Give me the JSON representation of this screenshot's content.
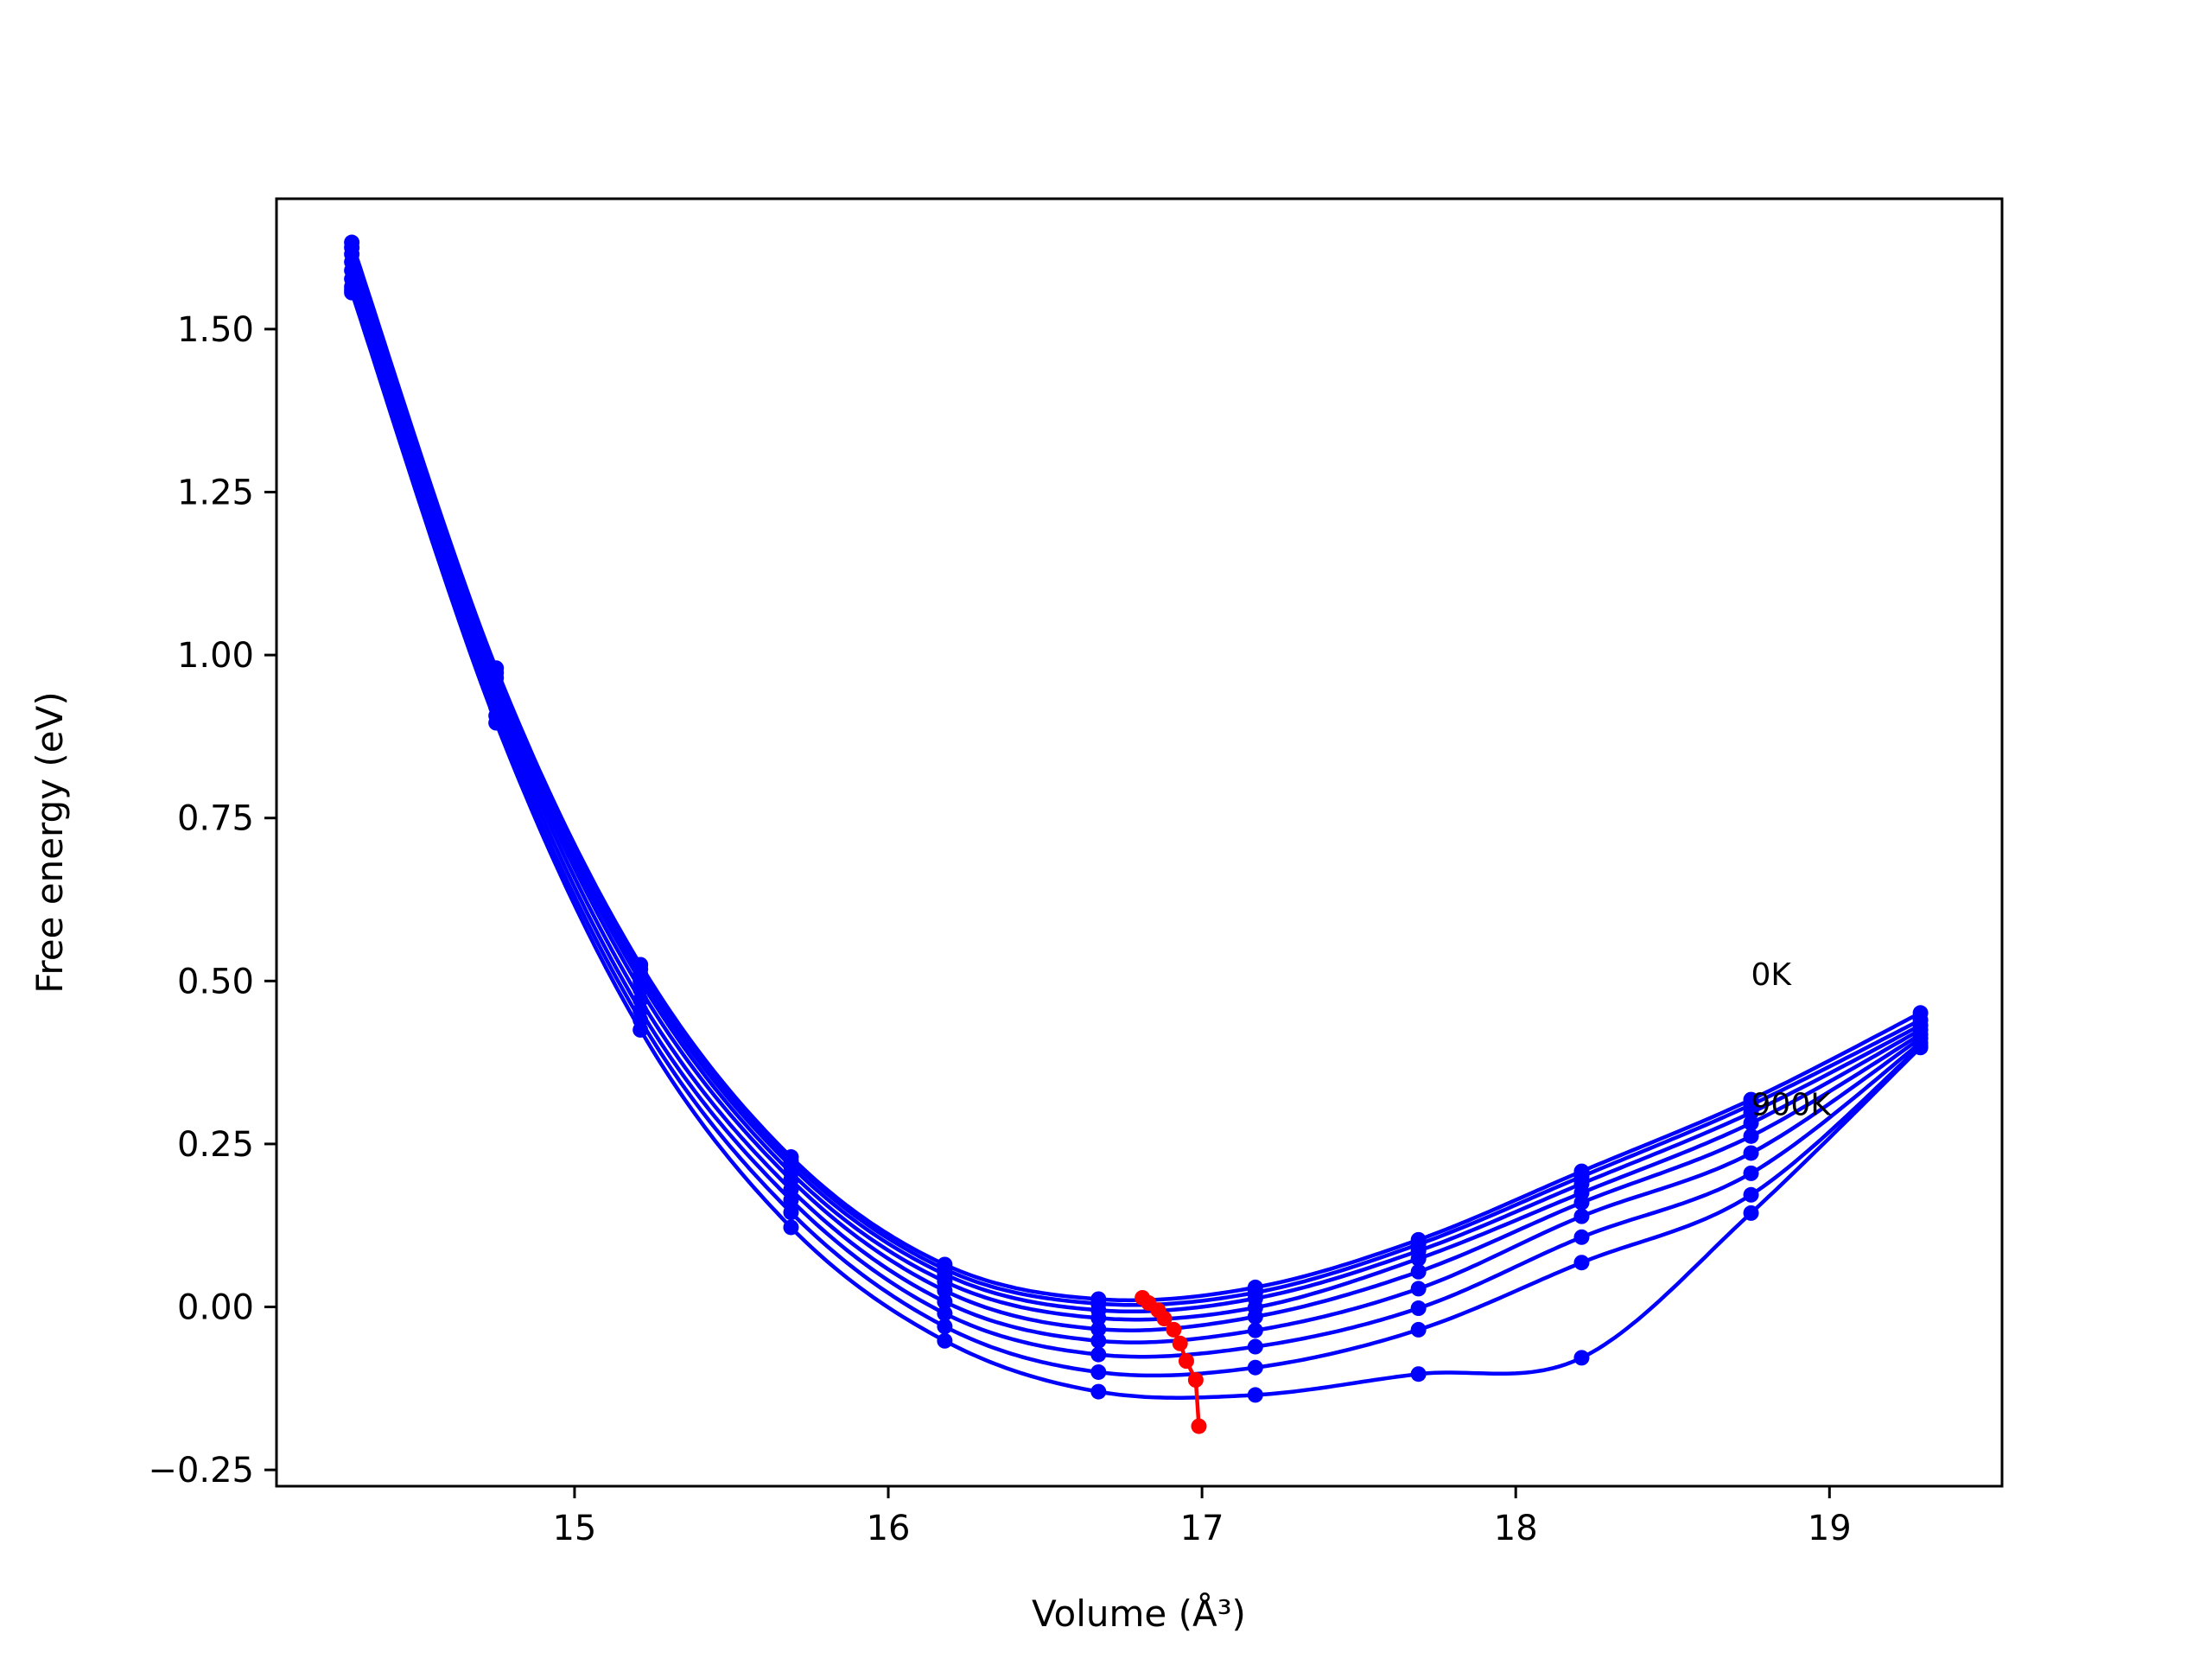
{
  "chart_data": {
    "type": "line",
    "xlabel": "Volume (Å³)",
    "ylabel": "Free energy (eV)",
    "xlim": [
      14.05,
      19.55
    ],
    "ylim": [
      -0.275,
      1.7
    ],
    "xticks": [
      15,
      16,
      17,
      18,
      19
    ],
    "yticks": [
      -0.25,
      0.0,
      0.25,
      0.5,
      0.75,
      1.0,
      1.25,
      1.5
    ],
    "ytick_labels": [
      "−0.25",
      "0.00",
      "0.25",
      "0.50",
      "0.75",
      "1.00",
      "1.25",
      "1.50"
    ],
    "x_points": [
      14.29,
      14.75,
      15.21,
      15.69,
      16.18,
      16.67,
      17.17,
      17.69,
      18.21,
      18.75,
      19.29
    ],
    "series": [
      {
        "values": [
          1.633,
          0.98,
          0.525,
          0.23,
          0.065,
          0.012,
          0.03,
          0.103,
          0.208,
          0.318,
          0.451
        ]
      },
      {
        "values": [
          1.625,
          0.973,
          0.518,
          0.224,
          0.058,
          0.005,
          0.022,
          0.096,
          0.2,
          0.31,
          0.44
        ]
      },
      {
        "values": [
          1.615,
          0.965,
          0.51,
          0.216,
          0.05,
          -0.005,
          0.013,
          0.086,
          0.189,
          0.298,
          0.432
        ]
      },
      {
        "values": [
          1.603,
          0.955,
          0.5,
          0.206,
          0.039,
          -0.017,
          -0.001,
          0.074,
          0.175,
          0.282,
          0.425
        ]
      },
      {
        "values": [
          1.59,
          0.945,
          0.487,
          0.195,
          0.025,
          -0.034,
          -0.015,
          0.054,
          0.16,
          0.262,
          0.418
        ]
      },
      {
        "values": [
          1.577,
          0.933,
          0.471,
          0.18,
          0.008,
          -0.052,
          -0.036,
          0.028,
          0.139,
          0.236,
          0.412
        ]
      },
      {
        "values": [
          1.565,
          0.92,
          0.455,
          0.164,
          -0.01,
          -0.073,
          -0.061,
          -0.002,
          0.107,
          0.205,
          0.405
        ]
      },
      {
        "values": [
          1.56,
          0.907,
          0.44,
          0.145,
          -0.03,
          -0.1,
          -0.093,
          -0.035,
          0.068,
          0.172,
          0.4
        ]
      },
      {
        "values": [
          1.556,
          0.896,
          0.425,
          0.122,
          -0.052,
          -0.13,
          -0.135,
          -0.103,
          -0.078,
          0.144,
          0.398
        ]
      }
    ],
    "min_points": {
      "x": [
        16.81,
        16.83,
        16.86,
        16.88,
        16.91,
        16.93,
        16.95,
        16.98
      ],
      "y": [
        0.014,
        0.006,
        -0.005,
        -0.018,
        -0.035,
        -0.056,
        -0.083,
        -0.112
      ],
      "extra": [
        [
          16.99,
          -0.183
        ]
      ]
    },
    "line_color": "#0000ff",
    "min_color": "#ff0000",
    "annotations": [
      {
        "text": "0K",
        "x": 18.75,
        "y": 0.51
      },
      {
        "text": "900K",
        "x": 18.75,
        "y": 0.31
      }
    ],
    "grid": false
  }
}
